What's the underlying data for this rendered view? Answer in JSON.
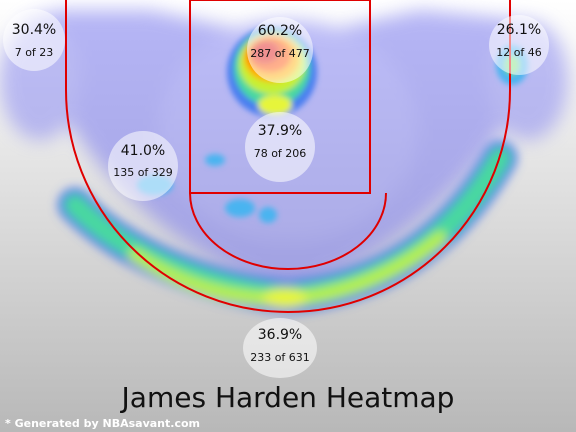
{
  "title": "James Harden Heatmap",
  "credit": "* Generated by NBAsavant.com",
  "colors": {
    "court_line": "#e00000",
    "background_top": "#ffffff",
    "background_bottom": "#b8b8b8",
    "zone_fill": "#ffffff"
  },
  "zones": [
    {
      "id": "left-corner-three",
      "pct": "30.4%",
      "made_of": "7 of 23"
    },
    {
      "id": "restricted-area",
      "pct": "60.2%",
      "made_of": "287 of 477"
    },
    {
      "id": "right-corner-three",
      "pct": "26.1%",
      "made_of": "12 of 46"
    },
    {
      "id": "mid-range",
      "pct": "41.0%",
      "made_of": "135 of 329"
    },
    {
      "id": "paint-non-ra",
      "pct": "37.9%",
      "made_of": "78 of 206"
    },
    {
      "id": "above-break-three",
      "pct": "36.9%",
      "made_of": "233 of 631"
    }
  ]
}
